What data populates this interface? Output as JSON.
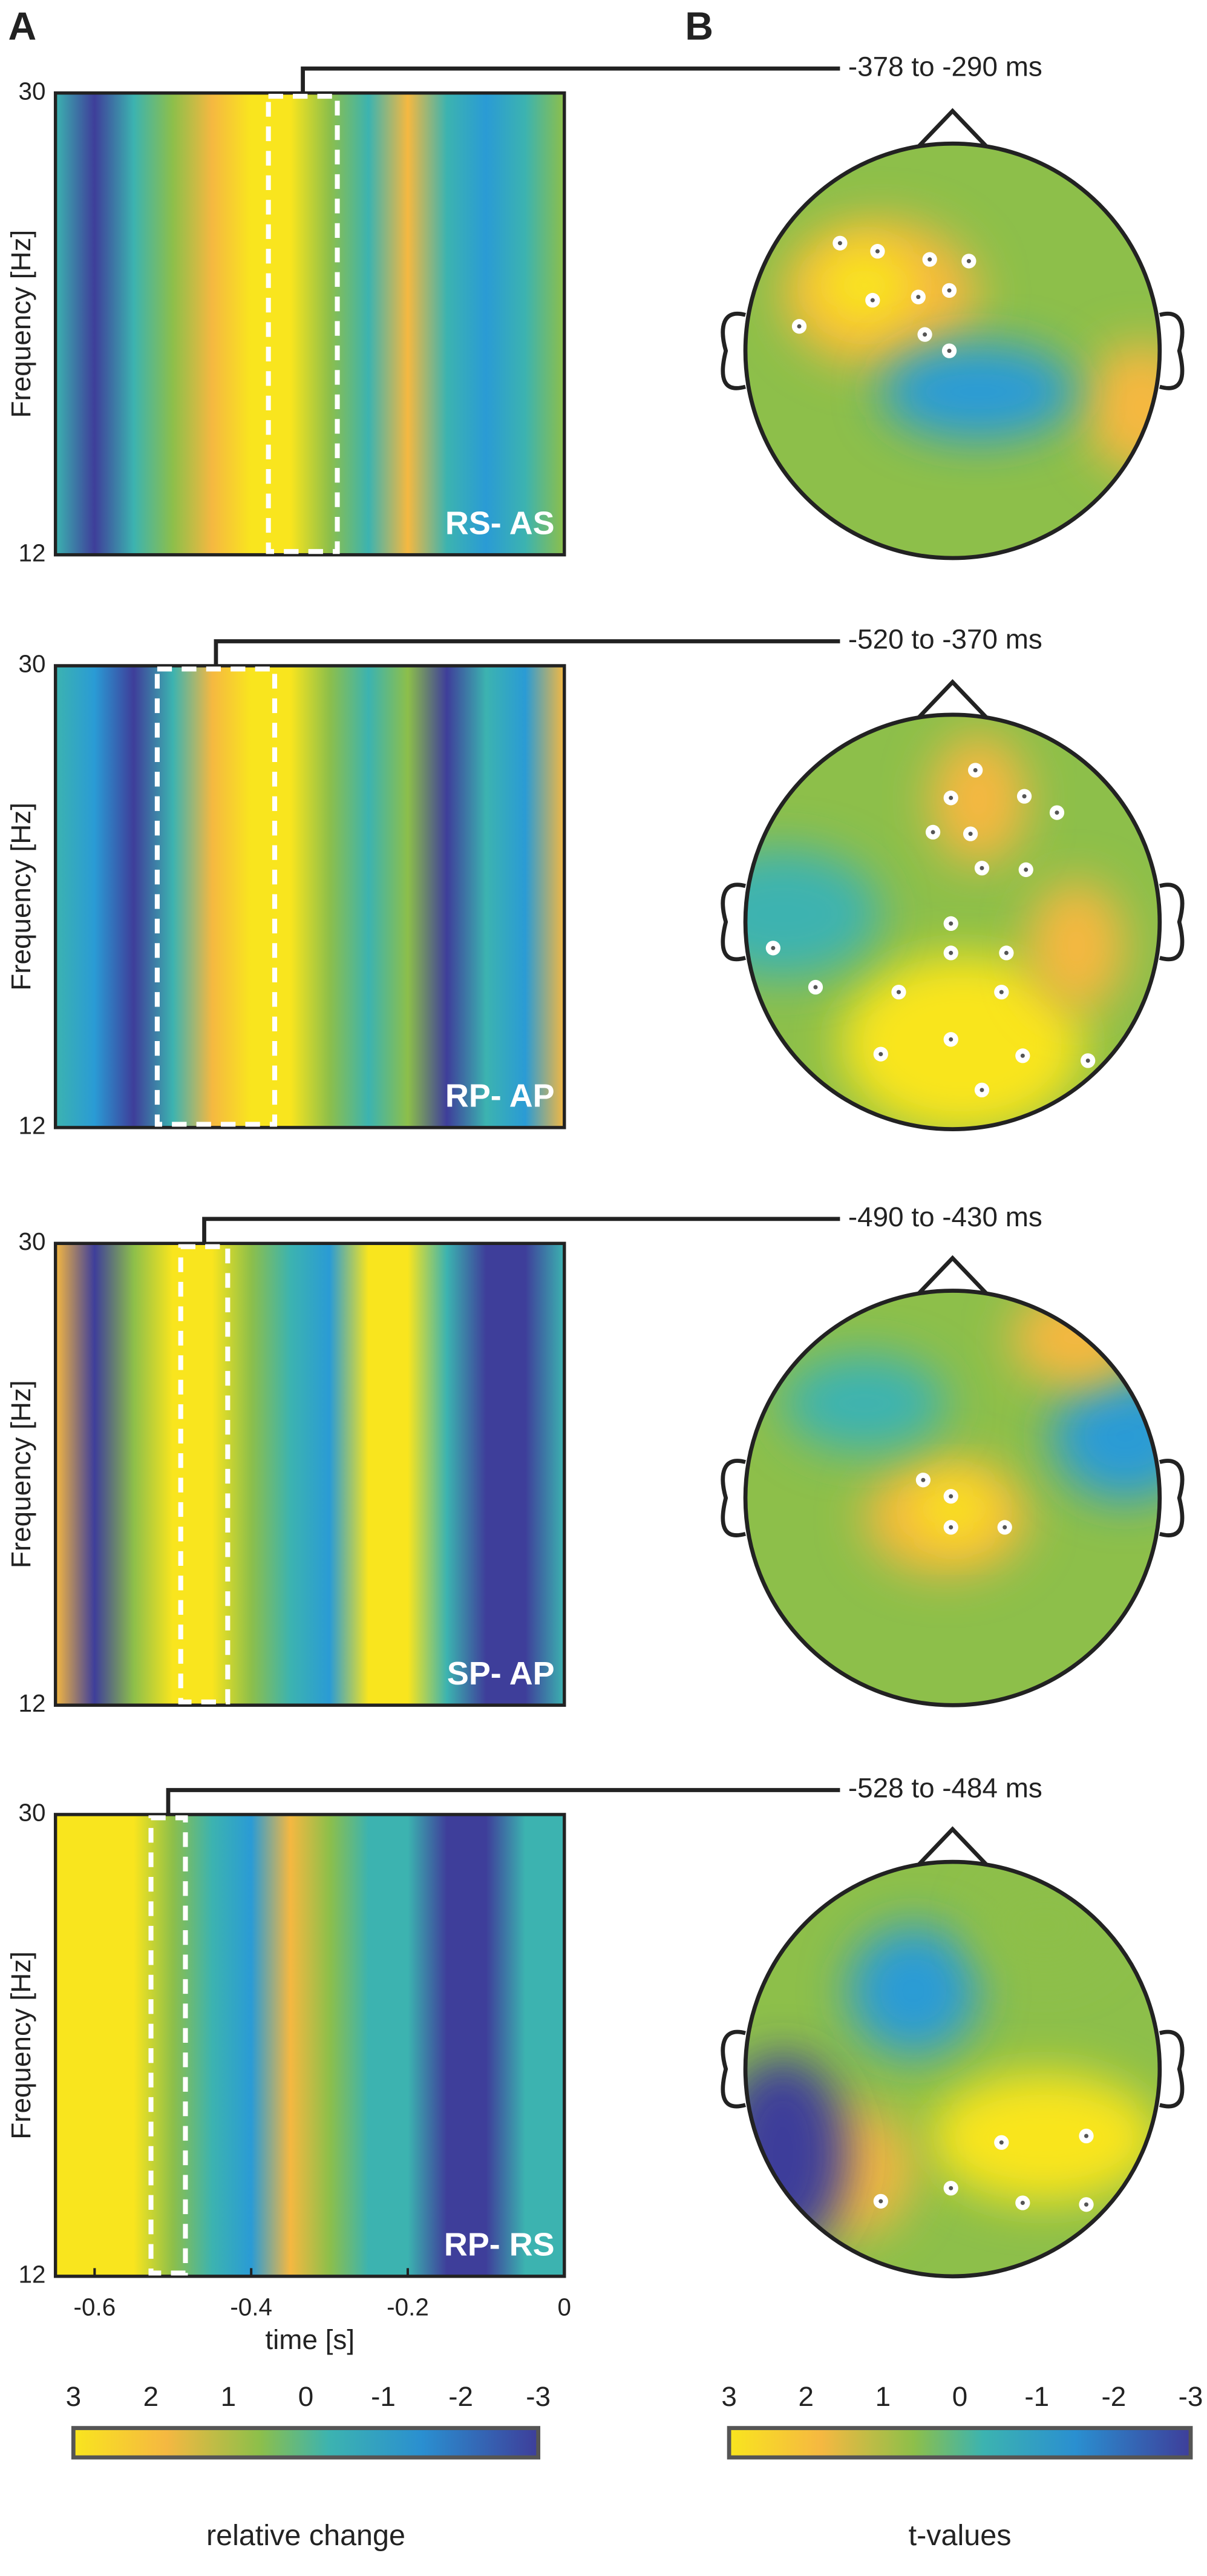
{
  "panel_labels": [
    "A",
    "B"
  ],
  "chart_data": [
    {
      "type": "heatmap",
      "label": "RS- AS",
      "window_label": "-378 to -290 ms",
      "window": [
        -0.378,
        -0.29
      ],
      "xlim": [
        -0.65,
        0
      ],
      "ylim": [
        12,
        30
      ],
      "yticks": [
        12,
        30
      ],
      "ylabel": "Frequency [Hz]"
    },
    {
      "type": "heatmap",
      "label": "RP- AP",
      "window_label": "-520 to -370 ms",
      "window": [
        -0.52,
        -0.37
      ],
      "xlim": [
        -0.65,
        0
      ],
      "ylim": [
        12,
        30
      ],
      "yticks": [
        12,
        30
      ],
      "ylabel": "Frequency [Hz]"
    },
    {
      "type": "heatmap",
      "label": "SP- AP",
      "window_label": "-490 to -430 ms",
      "window": [
        -0.49,
        -0.43
      ],
      "xlim": [
        -0.65,
        0
      ],
      "ylim": [
        12,
        30
      ],
      "yticks": [
        12,
        30
      ],
      "ylabel": "Frequency [Hz]"
    },
    {
      "type": "heatmap",
      "label": "RP- RS",
      "window_label": "-528 to -484 ms",
      "window": [
        -0.528,
        -0.484
      ],
      "xlim": [
        -0.65,
        0
      ],
      "ylim": [
        12,
        30
      ],
      "yticks": [
        12,
        30
      ],
      "ylabel": "Frequency [Hz]",
      "xticks": [
        -0.6,
        -0.4,
        -0.2,
        0
      ],
      "xlabel": "time [s]"
    }
  ],
  "colorbars": [
    {
      "ticks": [
        3,
        2,
        1,
        0,
        -1,
        -2,
        -3
      ],
      "label": "relative change"
    },
    {
      "ticks": [
        3,
        2,
        1,
        0,
        -1,
        -2,
        -3
      ],
      "label": "t-values"
    }
  ]
}
